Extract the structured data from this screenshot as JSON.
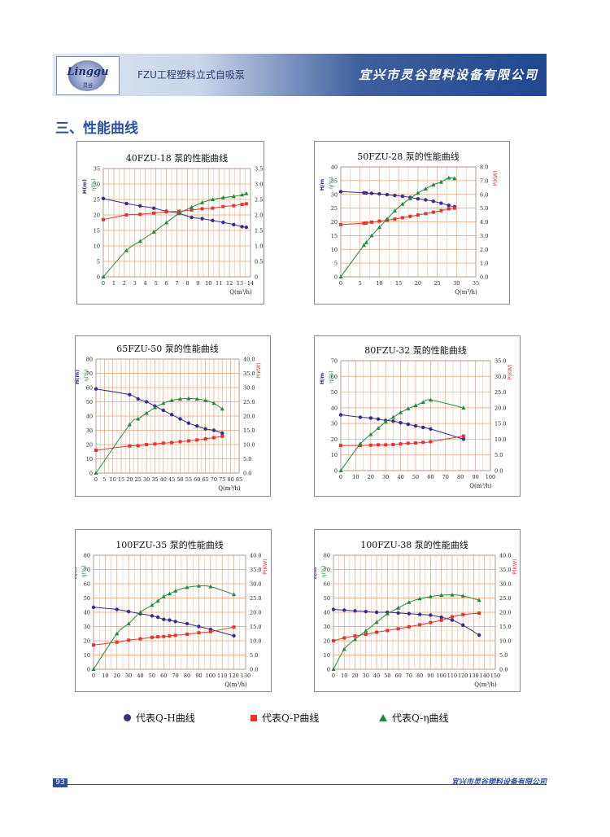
{
  "header": {
    "logo_text": "Linggu",
    "logo_sub": "灵谷",
    "title": "FZU工程塑料立式自吸泵",
    "company": "宜兴市灵谷塑料设备有限公司"
  },
  "section_title": "三、性能曲线",
  "colors": {
    "qh": "#3a2a8a",
    "qp": "#e8322a",
    "qeta": "#1f8a3a",
    "grid": "#e8a070",
    "banner": "#20478f"
  },
  "legend": {
    "qh": "代表Q-H曲线",
    "qp": "代表Q-P曲线",
    "qeta": "代表Q-η曲线"
  },
  "footer": {
    "page_no": "93",
    "company": "宜兴市灵谷塑料设备有限公司"
  },
  "chart_data": [
    {
      "type": "line",
      "title": "40FZU-18  泵的性能曲线",
      "xlabel": "Q(m³/h)",
      "ylabel_left": "H(m)",
      "ylabel_left2": "η(%)",
      "ylabel_right": "P(KW)",
      "xlim": [
        0,
        14
      ],
      "xticks": [
        0,
        1,
        2,
        3,
        4,
        5,
        6,
        7,
        8,
        9,
        10,
        11,
        12,
        13,
        14
      ],
      "ylim": [
        0,
        35
      ],
      "yticks": [
        0,
        5,
        10,
        15,
        20,
        25,
        30,
        35
      ],
      "y2lim": [
        0,
        3.5
      ],
      "y2ticks": [
        "0",
        "0.5",
        "1.0",
        "1.5",
        "2.0",
        "2.5",
        "3.0",
        "3.5"
      ],
      "series": [
        {
          "key": "qh",
          "x": [
            0,
            2.2,
            3.5,
            4.8,
            6,
            7.2,
            8.4,
            9.4,
            10.4,
            11.4,
            12.4,
            13.2,
            13.6
          ],
          "y": [
            25.3,
            23.7,
            22.9,
            22.2,
            21.2,
            20.5,
            19.2,
            18.8,
            18.2,
            17.6,
            16.9,
            16.2,
            16
          ]
        },
        {
          "key": "qp",
          "x": [
            0,
            2.2,
            3.5,
            4.8,
            6,
            7.2,
            8.4,
            9.4,
            10.4,
            11.4,
            12.4,
            13.2,
            13.6
          ],
          "y": [
            1.85,
            2.0,
            2.02,
            2.06,
            2.1,
            2.12,
            2.16,
            2.2,
            2.22,
            2.27,
            2.3,
            2.34,
            2.36
          ]
        },
        {
          "key": "qeta",
          "x": [
            0,
            2.2,
            3.5,
            4.8,
            6,
            7.2,
            8.4,
            9.4,
            10.4,
            11.4,
            12.4,
            13.2,
            13.6
          ],
          "y": [
            0,
            8.5,
            11.5,
            14.5,
            17.5,
            20.5,
            22.5,
            24,
            25,
            25.6,
            26,
            26.5,
            26.9
          ]
        }
      ]
    },
    {
      "type": "line",
      "title": "50FZU-28  泵的性能曲线",
      "xlabel": "Q(m³/h)",
      "ylabel_left": "H/m",
      "ylabel_left2": "η(%)",
      "ylabel_right": "P(KW)",
      "xlim": [
        0,
        35
      ],
      "xticks": [
        0,
        5,
        10,
        15,
        20,
        25,
        30,
        35
      ],
      "ylim": [
        0,
        40
      ],
      "yticks": [
        0,
        5,
        10,
        15,
        20,
        25,
        30,
        35,
        40
      ],
      "y2lim": [
        0,
        8
      ],
      "y2ticks": [
        "0.0",
        "1.0",
        "2.0",
        "3.0",
        "4.0",
        "5.0",
        "6.0",
        "7.0",
        "8.0"
      ],
      "series": [
        {
          "key": "qh",
          "x": [
            0,
            6,
            6.6,
            8,
            10,
            12,
            14,
            16,
            18,
            20,
            22,
            24,
            26,
            28,
            29.5
          ],
          "y": [
            31,
            30.6,
            30.5,
            30.4,
            30.2,
            29.9,
            29.6,
            29.3,
            28.9,
            28.4,
            28,
            27.5,
            26.8,
            26,
            25.5
          ]
        },
        {
          "key": "qp",
          "x": [
            0,
            6,
            6.6,
            8,
            10,
            12,
            14,
            16,
            18,
            20,
            22,
            24,
            26,
            28,
            29.5
          ],
          "y": [
            3.8,
            3.9,
            3.92,
            3.98,
            4.05,
            4.12,
            4.2,
            4.3,
            4.4,
            4.5,
            4.6,
            4.7,
            4.82,
            4.95,
            5.0
          ]
        },
        {
          "key": "qeta",
          "x": [
            0,
            6,
            6.6,
            8,
            10,
            12,
            14,
            16,
            18,
            20,
            22,
            24,
            26,
            28,
            29.5
          ],
          "y": [
            0,
            11.5,
            12.5,
            15,
            18,
            21,
            24,
            26.5,
            28.5,
            30.5,
            32,
            33.5,
            34.5,
            36,
            35.8
          ]
        }
      ]
    },
    {
      "type": "line",
      "title": "65FZU-50  泵的性能曲线",
      "xlabel": "Q(m³/h)",
      "ylabel_left": "H(m)",
      "ylabel_left2": "η(%)",
      "ylabel_right": "P(KW)",
      "xlim": [
        0,
        85
      ],
      "xticks": [
        0,
        5,
        10,
        15,
        20,
        25,
        30,
        35,
        40,
        45,
        50,
        55,
        60,
        65,
        70,
        75,
        80,
        85
      ],
      "ylim": [
        0,
        80
      ],
      "yticks": [
        0,
        10,
        20,
        30,
        40,
        50,
        60,
        70,
        80
      ],
      "y2lim": [
        0,
        40
      ],
      "y2ticks": [
        "0.0",
        "5.0",
        "10.0",
        "15.0",
        "20.0",
        "25.0",
        "30.0",
        "35.0",
        "40.0"
      ],
      "series": [
        {
          "key": "qh",
          "x": [
            0,
            20,
            25,
            30,
            35,
            40,
            45,
            50,
            55,
            60,
            65,
            70,
            75
          ],
          "y": [
            59,
            55,
            52,
            50,
            47,
            44,
            41,
            38,
            35,
            33,
            31,
            30,
            28
          ]
        },
        {
          "key": "qp",
          "x": [
            0,
            20,
            25,
            30,
            35,
            40,
            45,
            50,
            55,
            60,
            65,
            70,
            75
          ],
          "y": [
            8,
            9.5,
            9.6,
            10,
            10.2,
            10.5,
            10.7,
            11,
            11.3,
            11.6,
            12,
            12.4,
            12.9
          ]
        },
        {
          "key": "qeta",
          "x": [
            0,
            20,
            25,
            30,
            35,
            40,
            45,
            50,
            55,
            60,
            65,
            70,
            75
          ],
          "y": [
            0,
            34,
            38,
            42,
            46,
            49,
            51,
            52,
            52.3,
            52,
            51,
            49,
            45
          ]
        }
      ]
    },
    {
      "type": "line",
      "title": "80FZU-32  泵的性能曲线",
      "xlabel": "Q(m³/h)",
      "ylabel_left": "H/m",
      "ylabel_left2": "η(%)",
      "ylabel_right": "P(KW)",
      "xlim": [
        0,
        100
      ],
      "xticks": [
        0,
        10,
        20,
        30,
        40,
        50,
        60,
        70,
        80,
        90,
        100
      ],
      "ylim": [
        0,
        70
      ],
      "yticks": [
        0,
        10,
        20,
        30,
        40,
        50,
        60,
        70
      ],
      "y2lim": [
        0,
        35
      ],
      "y2ticks": [
        "0.0",
        "5.0",
        "10.0",
        "15.0",
        "20.0",
        "25.0",
        "30.0",
        "35.0"
      ],
      "series": [
        {
          "key": "qh",
          "x": [
            0,
            13,
            20,
            25,
            30,
            35,
            40,
            45,
            50,
            55,
            60,
            82
          ],
          "y": [
            35.5,
            34,
            33.5,
            32.8,
            32,
            31.5,
            30.5,
            29.5,
            28.5,
            27.5,
            26.5,
            20
          ]
        },
        {
          "key": "qp",
          "x": [
            0,
            13,
            20,
            25,
            30,
            35,
            40,
            45,
            50,
            55,
            60,
            82
          ],
          "y": [
            8,
            8,
            8.1,
            8.2,
            8.2,
            8.3,
            8.5,
            8.7,
            8.8,
            9,
            9.2,
            11
          ]
        },
        {
          "key": "qeta",
          "x": [
            0,
            13,
            20,
            25,
            30,
            35,
            40,
            45,
            50,
            55,
            60,
            82
          ],
          "y": [
            0,
            17,
            23,
            27,
            31,
            34,
            37,
            39.5,
            41.5,
            43.5,
            45,
            40
          ]
        }
      ]
    },
    {
      "type": "line",
      "title": "100FZU-35  泵的性能曲线",
      "xlabel": "Q(m³/h)",
      "ylabel_left": "H/m",
      "ylabel_left2": "η(%)",
      "ylabel_right": "P(KW)",
      "xlim": [
        0,
        130
      ],
      "xticks": [
        0,
        10,
        20,
        30,
        40,
        50,
        60,
        70,
        80,
        90,
        100,
        110,
        120,
        130
      ],
      "ylim": [
        0,
        80
      ],
      "yticks": [
        0,
        10,
        20,
        30,
        40,
        50,
        60,
        70,
        80
      ],
      "y2lim": [
        0,
        40
      ],
      "y2ticks": [
        "0.0",
        "5.0",
        "10.0",
        "15.0",
        "20.0",
        "25.0",
        "30.0",
        "35.0",
        "40.0"
      ],
      "series": [
        {
          "key": "qh",
          "x": [
            0,
            20,
            30,
            40,
            50,
            55,
            60,
            65,
            70,
            80,
            90,
            100,
            120
          ],
          "y": [
            43.5,
            42,
            40.5,
            39,
            37.5,
            36.5,
            35,
            34.5,
            33.5,
            32,
            30,
            28,
            23.5
          ]
        },
        {
          "key": "qp",
          "x": [
            0,
            20,
            30,
            40,
            50,
            55,
            60,
            65,
            70,
            80,
            90,
            100,
            120
          ],
          "y": [
            8.5,
            9.5,
            10.2,
            10.7,
            11.2,
            11.4,
            11.5,
            11.7,
            11.9,
            12.3,
            12.8,
            13.2,
            14.8
          ]
        },
        {
          "key": "qeta",
          "x": [
            0,
            20,
            30,
            40,
            50,
            55,
            60,
            65,
            70,
            80,
            90,
            100,
            120
          ],
          "y": [
            0,
            25,
            32,
            40,
            45,
            48,
            51,
            53,
            55,
            57.5,
            58.5,
            58,
            52.5
          ]
        }
      ]
    },
    {
      "type": "line",
      "title": "100FZU-38  泵的性能曲线",
      "xlabel": "Q(m³/h)",
      "ylabel_left": "H/m",
      "ylabel_left2": "η(%)",
      "ylabel_right": "P(KW)",
      "xlim": [
        0,
        150
      ],
      "xticks": [
        0,
        10,
        20,
        30,
        40,
        50,
        60,
        70,
        80,
        90,
        100,
        110,
        120,
        130,
        140,
        150
      ],
      "ylim": [
        0,
        80
      ],
      "yticks": [
        0,
        10,
        20,
        30,
        40,
        50,
        60,
        70,
        80
      ],
      "y2lim": [
        0,
        40
      ],
      "y2ticks": [
        "0.0",
        "5.0",
        "10.0",
        "15.0",
        "20.0",
        "25.0",
        "30.0",
        "35.0",
        "40.0"
      ],
      "series": [
        {
          "key": "qh",
          "x": [
            0,
            10,
            20,
            30,
            40,
            50,
            60,
            70,
            80,
            90,
            100,
            110,
            120,
            135
          ],
          "y": [
            42,
            41.5,
            41,
            40.5,
            40,
            40,
            39.5,
            39,
            38.5,
            38,
            36.5,
            34.5,
            31,
            24
          ]
        },
        {
          "key": "qp",
          "x": [
            0,
            10,
            20,
            30,
            40,
            50,
            60,
            70,
            80,
            90,
            100,
            110,
            120,
            135
          ],
          "y": [
            10,
            11,
            11.7,
            12.3,
            13,
            13.6,
            14.2,
            14.9,
            15.6,
            16.4,
            17.2,
            18.4,
            19.2,
            19.7
          ]
        },
        {
          "key": "qeta",
          "x": [
            0,
            10,
            20,
            30,
            40,
            50,
            60,
            70,
            80,
            90,
            100,
            110,
            120,
            135
          ],
          "y": [
            0,
            14,
            21,
            27,
            33,
            39,
            43,
            47,
            49.5,
            51,
            52,
            52.2,
            51.5,
            48.5
          ]
        }
      ]
    }
  ]
}
